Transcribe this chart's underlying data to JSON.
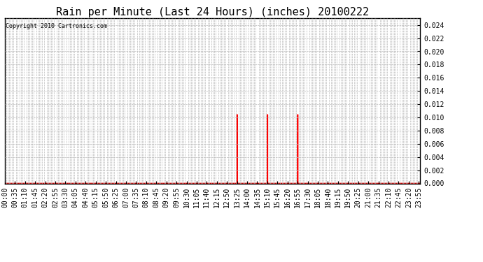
{
  "title": "Rain per Minute (Last 24 Hours) (inches) 20100222",
  "copyright_text": "Copyright 2010 Cartronics.com",
  "ylim": [
    0.0,
    0.025
  ],
  "yticks": [
    0.0,
    0.002,
    0.004,
    0.006,
    0.008,
    0.01,
    0.012,
    0.014,
    0.016,
    0.018,
    0.02,
    0.022,
    0.024
  ],
  "background_color": "#ffffff",
  "plot_bg_color": "#ffffff",
  "grid_color": "#bbbbbb",
  "line_color": "#ff0000",
  "spike_times_minutes": [
    805,
    910,
    1015
  ],
  "spike_values": [
    0.0104,
    0.0104,
    0.0104
  ],
  "total_minutes": 1440,
  "title_fontsize": 11,
  "tick_fontsize": 7,
  "xlabel_interval_minutes": 35,
  "grid_interval_minutes": 5
}
